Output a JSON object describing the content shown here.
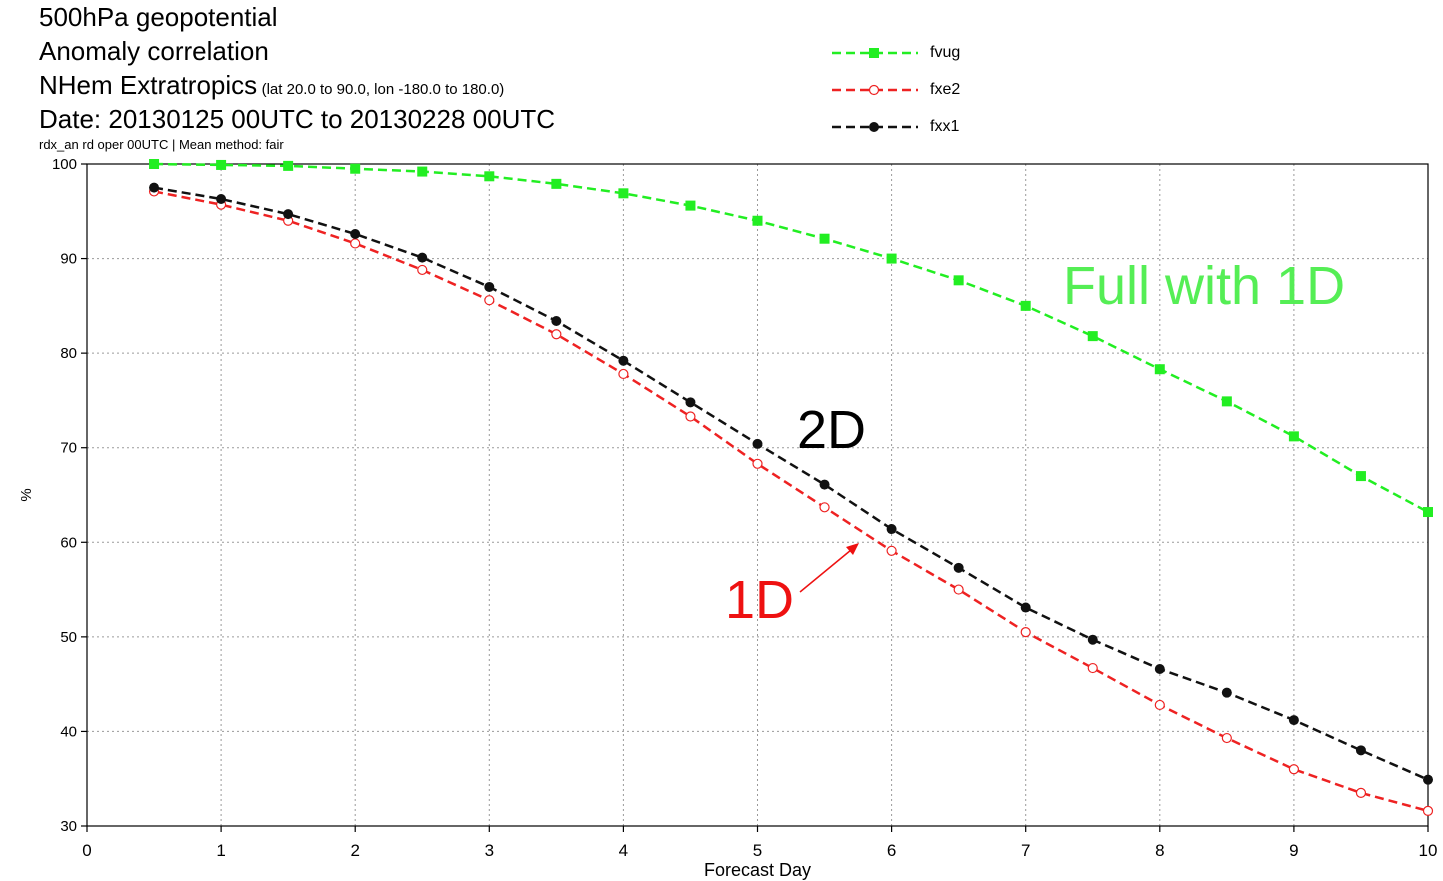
{
  "header": {
    "line1": "500hPa geopotential",
    "line2": "Anomaly correlation",
    "line3_main": "NHem Extratropics",
    "line3_sub": "(lat  20.0 to 90.0, lon  -180.0 to  180.0)",
    "line4": "Date: 20130125 00UTC to 20130228 00UTC",
    "line5": "rdx_an rd oper 00UTC | Mean method: fair"
  },
  "chart_data": {
    "type": "line",
    "xlabel": "Forecast Day",
    "ylabel": "%",
    "xlim": [
      0,
      10
    ],
    "ylim": [
      30,
      100
    ],
    "xticks": [
      "0",
      "1",
      "2",
      "3",
      "4",
      "5",
      "6",
      "7",
      "8",
      "9",
      "10"
    ],
    "yticks": [
      "30",
      "40",
      "50",
      "60",
      "70",
      "80",
      "90",
      "100"
    ],
    "grid": true,
    "legend_position": "top-center",
    "x": [
      0.5,
      1,
      1.5,
      2,
      2.5,
      3,
      3.5,
      4,
      4.5,
      5,
      5.5,
      6,
      6.5,
      7,
      7.5,
      8,
      8.5,
      9,
      9.5,
      10
    ],
    "series": [
      {
        "name": "fvug",
        "color": "#22ee22",
        "marker": "filled-square",
        "values": [
          100.0,
          99.9,
          99.8,
          99.5,
          99.2,
          98.7,
          97.9,
          96.9,
          95.6,
          94.0,
          92.1,
          90.0,
          87.7,
          85.0,
          81.8,
          78.3,
          74.9,
          71.2,
          67.0,
          63.2
        ]
      },
      {
        "name": "fxe2",
        "color": "#ee2222",
        "marker": "open-circle",
        "values": [
          97.1,
          95.7,
          94.0,
          91.6,
          88.8,
          85.6,
          82.0,
          77.8,
          73.3,
          68.3,
          63.7,
          59.1,
          55.0,
          50.5,
          46.7,
          42.8,
          39.3,
          36.0,
          33.5,
          31.6
        ]
      },
      {
        "name": "fxx1",
        "color": "#111111",
        "marker": "filled-circle",
        "values": [
          97.5,
          96.3,
          94.7,
          92.6,
          90.1,
          87.0,
          83.4,
          79.2,
          74.8,
          70.4,
          66.1,
          61.4,
          57.3,
          53.1,
          49.7,
          46.6,
          44.1,
          41.2,
          38.0,
          34.9
        ]
      }
    ],
    "annotations": [
      {
        "text": "Full with 1D",
        "color": "#55ee55"
      },
      {
        "text": "2D",
        "color": "#000000"
      },
      {
        "text": "1D",
        "color": "#ee1111"
      }
    ]
  }
}
